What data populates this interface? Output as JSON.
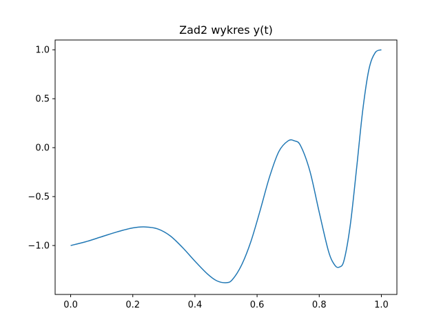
{
  "chart_data": {
    "type": "line",
    "title": "Zad2 wykres y(t)",
    "xlabel": "",
    "ylabel": "",
    "xlim": [
      -0.05,
      1.05
    ],
    "ylim": [
      -1.5,
      1.1
    ],
    "grid": false,
    "x_ticks": [
      0.0,
      0.2,
      0.4,
      0.6,
      0.8,
      1.0
    ],
    "x_tick_labels": [
      "0.0",
      "0.2",
      "0.4",
      "0.6",
      "0.8",
      "1.0"
    ],
    "y_ticks": [
      -1.0,
      -0.5,
      0.0,
      0.5,
      1.0
    ],
    "y_tick_labels": [
      "−1.0",
      "−0.5",
      "0.0",
      "0.5",
      "1.0"
    ],
    "series": [
      {
        "color": "#1f77b4",
        "x": [
          0.0,
          0.05,
          0.1,
          0.15,
          0.2,
          0.24,
          0.28,
          0.32,
          0.36,
          0.4,
          0.44,
          0.47,
          0.5,
          0.52,
          0.55,
          0.58,
          0.61,
          0.64,
          0.67,
          0.7,
          0.72,
          0.74,
          0.77,
          0.8,
          0.83,
          0.85,
          0.865,
          0.88,
          0.9,
          0.92,
          0.94,
          0.96,
          0.98,
          1.0
        ],
        "values": [
          -1.0,
          -0.96,
          -0.91,
          -0.86,
          -0.82,
          -0.81,
          -0.83,
          -0.9,
          -1.02,
          -1.16,
          -1.29,
          -1.36,
          -1.38,
          -1.35,
          -1.2,
          -0.96,
          -0.64,
          -0.3,
          -0.04,
          0.07,
          0.07,
          0.02,
          -0.24,
          -0.66,
          -1.06,
          -1.2,
          -1.22,
          -1.15,
          -0.79,
          -0.22,
          0.38,
          0.8,
          0.97,
          1.0
        ]
      }
    ]
  }
}
